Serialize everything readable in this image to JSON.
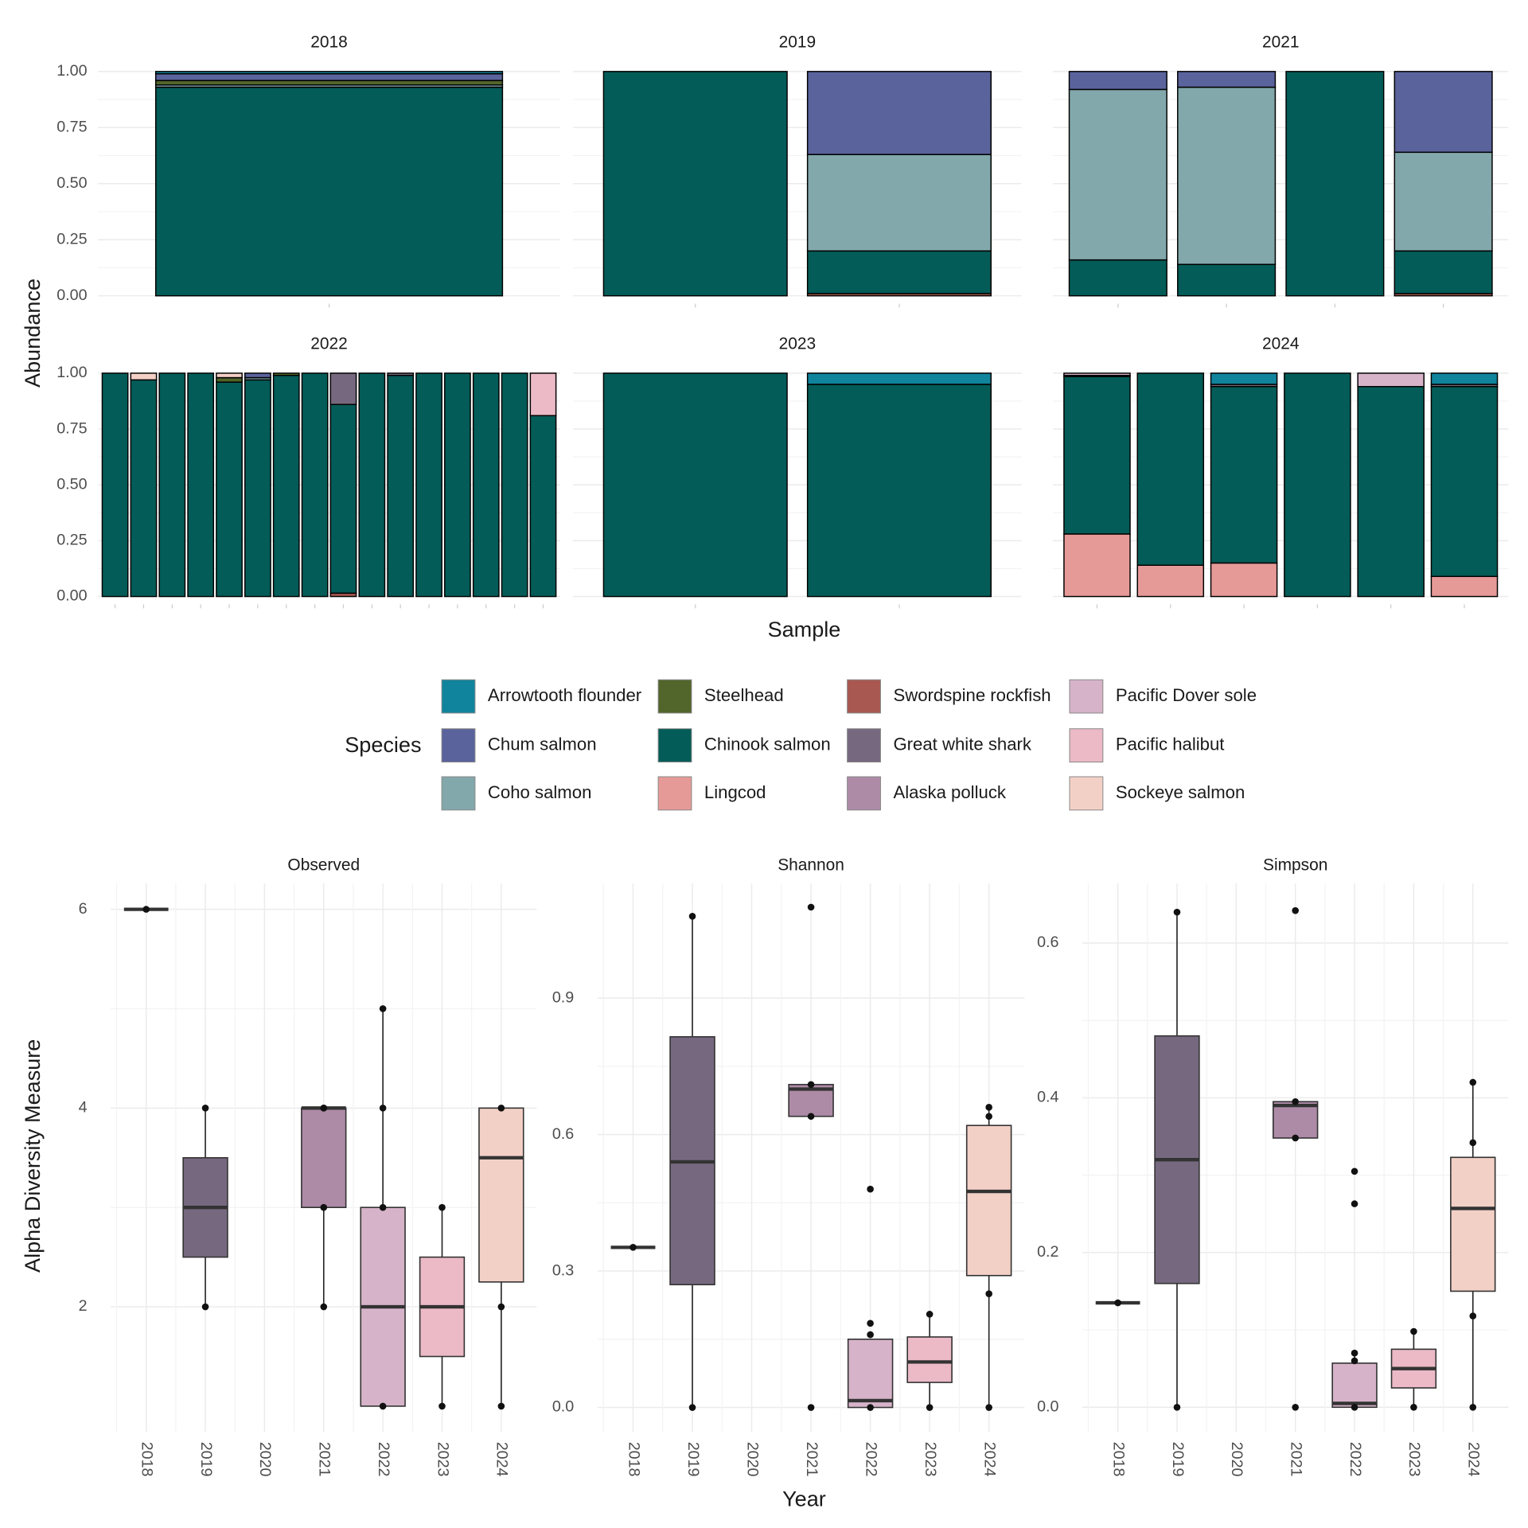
{
  "chart_data": [
    {
      "type": "bar",
      "stacked": true,
      "ylabel": "Abundance",
      "xlabel": "Sample",
      "legend_title": "Species",
      "ylim": [
        0,
        1
      ],
      "yticks": [
        {
          "value": 0,
          "label": "0.00"
        },
        {
          "value": 0.25,
          "label": "0.25"
        },
        {
          "value": 0.5,
          "label": "0.50"
        },
        {
          "value": 0.75,
          "label": "0.75"
        },
        {
          "value": 1,
          "label": "1.00"
        }
      ],
      "grid": true,
      "species": [
        {
          "name": "Arrowtooth flounder",
          "color": "#10849c"
        },
        {
          "name": "Chum salmon",
          "color": "#5a639c"
        },
        {
          "name": "Coho salmon",
          "color": "#83a8ab"
        },
        {
          "name": "Steelhead",
          "color": "#52652a"
        },
        {
          "name": "Chinook salmon",
          "color": "#035c58"
        },
        {
          "name": "Lingcod",
          "color": "#e69a98"
        },
        {
          "name": "Swordspine rockfish",
          "color": "#a85850"
        },
        {
          "name": "Great white shark",
          "color": "#76697f"
        },
        {
          "name": "Alaska polluck",
          "color": "#ad8aa6"
        },
        {
          "name": "Pacific Dover sole",
          "color": "#d6b3c9"
        },
        {
          "name": "Pacific halibut",
          "color": "#ebbac6"
        },
        {
          "name": "Sockeye salmon",
          "color": "#f3d0c6"
        }
      ],
      "facets": [
        {
          "title": "2018",
          "samples": [
            [
              0.01,
              0.03,
              0.01,
              0.02,
              0.93,
              0,
              0,
              0,
              0,
              0,
              0,
              0
            ]
          ]
        },
        {
          "title": "2019",
          "samples": [
            [
              0,
              0,
              0,
              0,
              1,
              0,
              0,
              0,
              0,
              0,
              0,
              0
            ],
            [
              0,
              0.37,
              0.43,
              0,
              0.19,
              0,
              0.01,
              0,
              0,
              0,
              0,
              0
            ]
          ]
        },
        {
          "title": "2021",
          "samples": [
            [
              0,
              0.08,
              0.76,
              0,
              0.16,
              0,
              0,
              0,
              0,
              0,
              0,
              0
            ],
            [
              0,
              0.07,
              0.79,
              0,
              0.14,
              0,
              0,
              0,
              0,
              0,
              0,
              0
            ],
            [
              0,
              0,
              0,
              0,
              1,
              0,
              0,
              0,
              0,
              0,
              0,
              0
            ],
            [
              0,
              0.36,
              0.44,
              0,
              0.19,
              0,
              0.01,
              0,
              0,
              0,
              0,
              0
            ]
          ]
        },
        {
          "title": "2022",
          "samples": [
            [
              0,
              0,
              0,
              0,
              1,
              0,
              0,
              0,
              0,
              0,
              0,
              0
            ],
            [
              0,
              0,
              0,
              0,
              0.97,
              0,
              0,
              0,
              0,
              0,
              0,
              0.03
            ],
            [
              0,
              0,
              0,
              0,
              1,
              0,
              0,
              0,
              0,
              0,
              0,
              0
            ],
            [
              0,
              0,
              0,
              0,
              1,
              0,
              0,
              0,
              0,
              0,
              0,
              0
            ],
            [
              0,
              0,
              0,
              0.02,
              0.96,
              0,
              0,
              0,
              0,
              0,
              0,
              0.02
            ],
            [
              0,
              0.02,
              0.01,
              0,
              0.97,
              0,
              0,
              0,
              0,
              0,
              0,
              0
            ],
            [
              0,
              0,
              0,
              0.01,
              0.99,
              0,
              0,
              0,
              0,
              0,
              0,
              0
            ],
            [
              0,
              0,
              0,
              0,
              1,
              0,
              0,
              0,
              0,
              0,
              0,
              0
            ],
            [
              0,
              0,
              0,
              0,
              0.845,
              0,
              0.015,
              0.14,
              0,
              0,
              0,
              0
            ],
            [
              0,
              0,
              0,
              0,
              1,
              0,
              0,
              0,
              0,
              0,
              0,
              0
            ],
            [
              0,
              0,
              0,
              0,
              0.99,
              0,
              0,
              0.01,
              0,
              0,
              0,
              0
            ],
            [
              0,
              0,
              0,
              0,
              1,
              0,
              0,
              0,
              0,
              0,
              0,
              0
            ],
            [
              0,
              0,
              0,
              0,
              1,
              0,
              0,
              0,
              0,
              0,
              0,
              0
            ],
            [
              0,
              0,
              0,
              0,
              1,
              0,
              0,
              0,
              0,
              0,
              0,
              0
            ],
            [
              0,
              0,
              0,
              0,
              1,
              0,
              0,
              0,
              0,
              0,
              0,
              0
            ],
            [
              0,
              0,
              0,
              0,
              0.81,
              0,
              0,
              0,
              0,
              0,
              0.19,
              0
            ]
          ]
        },
        {
          "title": "2023",
          "samples": [
            [
              0,
              0,
              0,
              0,
              1,
              0,
              0,
              0,
              0,
              0,
              0,
              0
            ],
            [
              0.05,
              0,
              0,
              0,
              0.95,
              0,
              0,
              0,
              0,
              0,
              0,
              0
            ]
          ]
        },
        {
          "title": "2024",
          "samples": [
            [
              0,
              0,
              0,
              0,
              0.705,
              0.28,
              0,
              0.005,
              0,
              0.01,
              0,
              0
            ],
            [
              0,
              0,
              0,
              0,
              0.86,
              0.14,
              0,
              0,
              0,
              0,
              0,
              0
            ],
            [
              0.05,
              0,
              0,
              0,
              0.79,
              0.15,
              0,
              0.01,
              0,
              0,
              0,
              0
            ],
            [
              0,
              0,
              0,
              0,
              1,
              0,
              0,
              0,
              0,
              0,
              0,
              0
            ],
            [
              0,
              0,
              0,
              0,
              0.94,
              0,
              0,
              0,
              0,
              0.06,
              0,
              0
            ],
            [
              0.05,
              0,
              0,
              0,
              0.85,
              0.09,
              0,
              0.01,
              0,
              0,
              0,
              0
            ]
          ]
        }
      ]
    },
    {
      "type": "box",
      "ylabel": "Alpha Diversity Measure",
      "xlabel": "Year",
      "grid": true,
      "categories": [
        "2018",
        "2019",
        "2020",
        "2021",
        "2022",
        "2023",
        "2024"
      ],
      "colors": [
        "#5a639c",
        "#76697f",
        null,
        "#ad8aa6",
        "#d6b3c9",
        "#ebbac6",
        "#f3d0c6"
      ],
      "facets": [
        {
          "title": "Observed",
          "ylim": [
            0.74,
            6.26
          ],
          "yticks": [
            2,
            4,
            6
          ],
          "boxes": [
            {
              "q1": 6,
              "median": 6,
              "q3": 6,
              "whisker_low": 6,
              "whisker_high": 6,
              "points": [
                6
              ]
            },
            {
              "q1": 2.5,
              "median": 3,
              "q3": 3.5,
              "whisker_low": 2,
              "whisker_high": 4,
              "points": [
                4,
                2
              ]
            },
            null,
            {
              "q1": 3,
              "median": 4,
              "q3": 4,
              "whisker_low": 2,
              "whisker_high": 4,
              "points": [
                4,
                4,
                3,
                2
              ]
            },
            {
              "q1": 1,
              "median": 2,
              "q3": 3,
              "whisker_low": 1,
              "whisker_high": 5,
              "points": [
                5,
                4,
                3,
                1
              ]
            },
            {
              "q1": 1.5,
              "median": 2,
              "q3": 2.5,
              "whisker_low": 1,
              "whisker_high": 3,
              "points": [
                3,
                1
              ]
            },
            {
              "q1": 2.25,
              "median": 3.5,
              "q3": 4,
              "whisker_low": 1,
              "whisker_high": 4,
              "points": [
                4,
                2,
                1
              ]
            }
          ]
        },
        {
          "title": "Shannon",
          "ylim": [
            -0.054,
            1.152
          ],
          "yticks": [
            {
              "value": 0,
              "label": "0.0"
            },
            0.3,
            0.6,
            0.9
          ],
          "boxes": [
            {
              "q1": 0.352,
              "median": 0.352,
              "q3": 0.352,
              "whisker_low": 0.352,
              "whisker_high": 0.352,
              "points": [
                0.352
              ]
            },
            {
              "q1": 0.27,
              "median": 0.54,
              "q3": 0.815,
              "whisker_low": 0,
              "whisker_high": 1.08,
              "points": [
                1.08,
                0
              ]
            },
            null,
            {
              "q1": 0.64,
              "median": 0.7,
              "q3": 0.71,
              "whisker_low": 0.64,
              "whisker_high": 0.71,
              "points": [
                1.1,
                0.71,
                0.64,
                0
              ]
            },
            {
              "q1": 0,
              "median": 0.015,
              "q3": 0.15,
              "whisker_low": 0,
              "whisker_high": 0.15,
              "points": [
                0.48,
                0.185,
                0.16,
                0
              ]
            },
            {
              "q1": 0.055,
              "median": 0.1,
              "q3": 0.155,
              "whisker_low": 0,
              "whisker_high": 0.205,
              "points": [
                0.205,
                0
              ]
            },
            {
              "q1": 0.29,
              "median": 0.475,
              "q3": 0.62,
              "whisker_low": 0,
              "whisker_high": 0.66,
              "points": [
                0.66,
                0.64,
                0.25,
                0
              ]
            }
          ]
        },
        {
          "title": "Simpson",
          "ylim": [
            -0.032,
            0.677
          ],
          "yticks": [
            {
              "value": 0,
              "label": "0.0"
            },
            0.2,
            0.4,
            0.6
          ],
          "boxes": [
            {
              "q1": 0.135,
              "median": 0.135,
              "q3": 0.135,
              "whisker_low": 0.135,
              "whisker_high": 0.135,
              "points": [
                0.135
              ]
            },
            {
              "q1": 0.16,
              "median": 0.32,
              "q3": 0.48,
              "whisker_low": 0,
              "whisker_high": 0.64,
              "points": [
                0.64,
                0
              ]
            },
            null,
            {
              "q1": 0.348,
              "median": 0.39,
              "q3": 0.395,
              "whisker_low": 0.348,
              "whisker_high": 0.395,
              "points": [
                0.642,
                0.395,
                0.348,
                0
              ]
            },
            {
              "q1": 0,
              "median": 0.005,
              "q3": 0.057,
              "whisker_low": 0,
              "whisker_high": 0.07,
              "points": [
                0.305,
                0.263,
                0.07,
                0.06,
                0
              ]
            },
            {
              "q1": 0.025,
              "median": 0.05,
              "q3": 0.075,
              "whisker_low": 0,
              "whisker_high": 0.098,
              "points": [
                0.098,
                0
              ]
            },
            {
              "q1": 0.15,
              "median": 0.257,
              "q3": 0.323,
              "whisker_low": 0,
              "whisker_high": 0.42,
              "points": [
                0.42,
                0.342,
                0.118,
                0
              ]
            }
          ]
        }
      ]
    }
  ]
}
